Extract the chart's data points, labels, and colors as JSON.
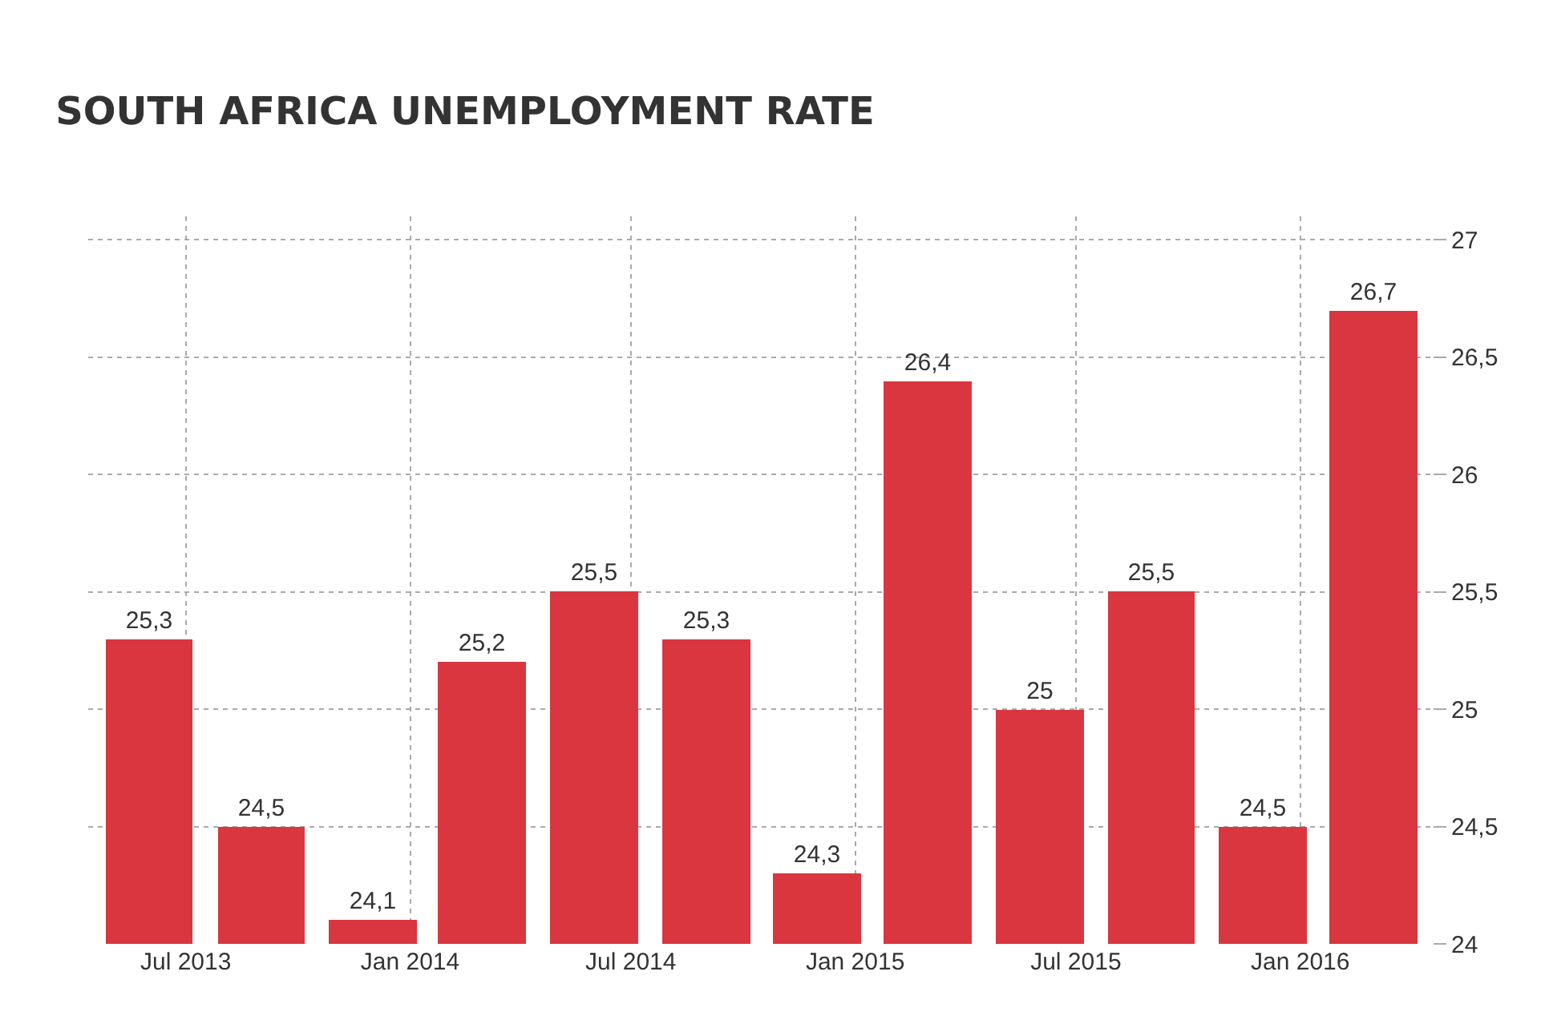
{
  "chart_data": {
    "type": "bar",
    "title": "SOUTH AFRICA UNEMPLOYMENT RATE",
    "x": [
      "2013-06",
      "2013-09",
      "2013-12",
      "2014-03",
      "2014-06",
      "2014-09",
      "2014-12",
      "2015-03",
      "2015-06",
      "2015-09",
      "2015-12",
      "2016-03"
    ],
    "values": [
      25.3,
      24.5,
      24.1,
      25.2,
      25.5,
      25.3,
      24.3,
      26.4,
      25,
      25.5,
      24.5,
      26.7
    ],
    "value_labels": [
      "25,3",
      "24,5",
      "24,1",
      "25,2",
      "25,5",
      "25,3",
      "24,3",
      "26,4",
      "25",
      "25,5",
      "24,5",
      "26,7"
    ],
    "color": "#d9363f",
    "xlim": [
      "2013-04-12",
      "2016-04-18"
    ],
    "xticks": [
      {
        "value": "2013-07",
        "label": "Jul 2013"
      },
      {
        "value": "2014-01",
        "label": "Jan 2014"
      },
      {
        "value": "2014-07",
        "label": "Jul 2014"
      },
      {
        "value": "2015-01",
        "label": "Jan 2015"
      },
      {
        "value": "2015-07",
        "label": "Jul 2015"
      },
      {
        "value": "2016-01",
        "label": "Jan 2016"
      }
    ],
    "ylim": [
      24,
      27.1
    ],
    "yticks": [
      24,
      {
        "value": 24.5,
        "label": "24,5"
      },
      25,
      {
        "value": 25.5,
        "label": "25,5"
      },
      26,
      {
        "value": 26.5,
        "label": "26,5"
      },
      27
    ],
    "grid": true,
    "legend": false
  }
}
